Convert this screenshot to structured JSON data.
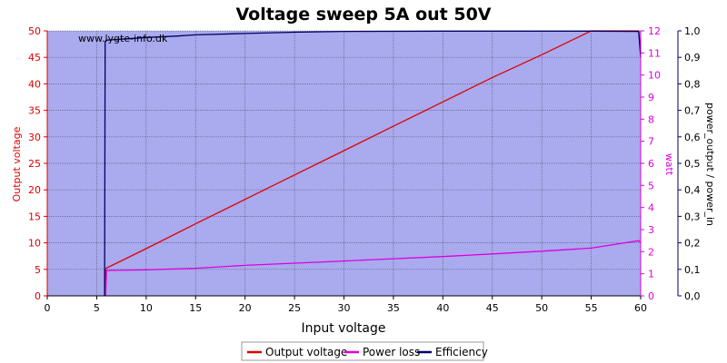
{
  "chart_data": {
    "type": "line",
    "title": "Voltage sweep 5A out 50V",
    "watermark": "www.lygte-info.dk",
    "xlabel": "Input voltage",
    "ylabel_left": "Output voltage",
    "ylabel_right1": "watt",
    "ylabel_right2": "power_output / power_in",
    "xlim": [
      0,
      60
    ],
    "ylim_left": [
      0,
      50
    ],
    "ylim_right1": [
      0,
      12
    ],
    "ylim_right2": [
      0,
      1
    ],
    "x_ticks": [
      "0",
      "5",
      "10",
      "15",
      "20",
      "25",
      "30",
      "35",
      "40",
      "45",
      "50",
      "55",
      "60"
    ],
    "y_left_ticks": [
      "0",
      "5",
      "10",
      "15",
      "20",
      "25",
      "30",
      "35",
      "40",
      "45",
      "50"
    ],
    "y_right1_ticks": [
      "0",
      "1",
      "2",
      "3",
      "4",
      "5",
      "6",
      "7",
      "8",
      "9",
      "10",
      "11",
      "12"
    ],
    "y_right2_ticks": [
      "0,0",
      "0,1",
      "0,2",
      "0,3",
      "0,4",
      "0,5",
      "0,6",
      "0,7",
      "0,8",
      "0,9",
      "1,0"
    ],
    "grid": true,
    "legend_position": "bottom",
    "colors": {
      "plot_background": "#aaaaee",
      "output_voltage": "#dd0000",
      "power_loss": "#dd00dd",
      "efficiency": "#000066"
    },
    "series": [
      {
        "name": "Output voltage",
        "axis": "left",
        "x": [
          5.8,
          5.9,
          5.95,
          10,
          15,
          20,
          25,
          30,
          35,
          40,
          45,
          50,
          55,
          59.8,
          60
        ],
        "y": [
          0,
          4.8,
          5.2,
          8.9,
          13.6,
          18.2,
          22.8,
          27.4,
          32.0,
          36.6,
          41.2,
          45.5,
          50.0,
          50.0,
          46.0
        ]
      },
      {
        "name": "Power loss",
        "axis": "right1",
        "x": [
          5.9,
          6.0,
          10,
          15,
          20,
          25,
          30,
          35,
          40,
          45,
          50,
          55,
          59.8,
          60
        ],
        "y": [
          0,
          1.15,
          1.18,
          1.25,
          1.38,
          1.48,
          1.58,
          1.68,
          1.78,
          1.9,
          2.02,
          2.16,
          2.5,
          2.4
        ]
      },
      {
        "name": "Efficiency",
        "axis": "right2",
        "x": [
          5.8,
          5.85,
          6,
          8,
          10,
          13,
          15,
          20,
          25,
          30,
          40,
          50,
          55,
          59.8,
          60
        ],
        "y": [
          0,
          0.96,
          0.965,
          0.97,
          0.975,
          0.98,
          0.985,
          0.99,
          0.995,
          0.998,
          0.999,
          0.999,
          0.999,
          0.998,
          0.9
        ]
      }
    ]
  }
}
